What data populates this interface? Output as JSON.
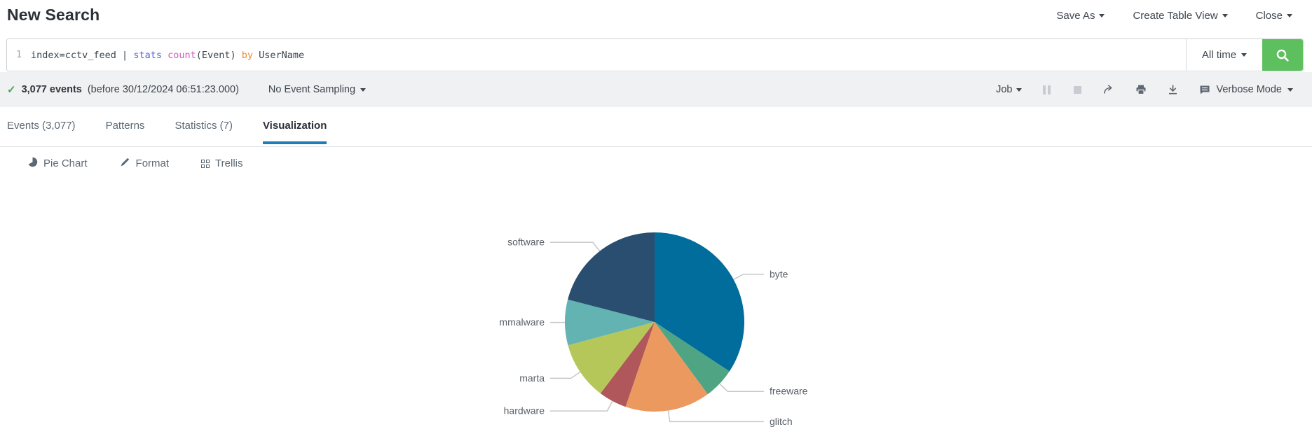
{
  "header": {
    "title": "New Search",
    "actions": [
      {
        "label": "Save As",
        "caret": true
      },
      {
        "label": "Create Table View",
        "caret": false
      },
      {
        "label": "Close",
        "caret": false
      }
    ]
  },
  "search_bar": {
    "line_number": "1",
    "query_tokens": [
      {
        "text": "index=cctv_feed | ",
        "role": "plain"
      },
      {
        "text": "stats",
        "role": "command"
      },
      {
        "text": " ",
        "role": "plain"
      },
      {
        "text": "count",
        "role": "function"
      },
      {
        "text": "(Event) ",
        "role": "plain"
      },
      {
        "text": "by",
        "role": "keyword"
      },
      {
        "text": " UserName",
        "role": "plain"
      }
    ],
    "token_colors": {
      "plain": "#3c444d",
      "command": "#5566d2",
      "function": "#d159c1",
      "keyword": "#f08a35"
    },
    "time_range": "All time",
    "button_color": "#5dbf5d"
  },
  "status_bar": {
    "result_count": "3,077 events",
    "result_detail": "(before 30/12/2024 06:51:23.000)",
    "sampling_label": "No Event Sampling",
    "job_label": "Job",
    "mode_label": "Verbose Mode"
  },
  "tabs": [
    {
      "label": "Events (3,077)",
      "active": false
    },
    {
      "label": "Patterns",
      "active": false
    },
    {
      "label": "Statistics (7)",
      "active": false
    },
    {
      "label": "Visualization",
      "active": true
    }
  ],
  "viz_toolbar": [
    {
      "label": "Pie Chart",
      "icon": "pie-chart-icon"
    },
    {
      "label": "Format",
      "icon": "pencil-icon"
    },
    {
      "label": "Trellis",
      "icon": "trellis-icon"
    }
  ],
  "chart_data": {
    "type": "pie",
    "title": "",
    "categories": [
      "byte",
      "freeware",
      "glitch",
      "hardware",
      "marta",
      "mmalware",
      "software"
    ],
    "values": [
      1055,
      173,
      472,
      156,
      323,
      253,
      645
    ],
    "total": 3077,
    "colors": [
      "#006d9c",
      "#4fa484",
      "#ec9960",
      "#af575a",
      "#b6c75a",
      "#62b3b2",
      "#294e70"
    ],
    "start_angle_deg": 0,
    "direction": "clockwise",
    "legend_position": "callout-labels",
    "label_color": "#5a6068",
    "leader_line_color": "#c4c7ca"
  }
}
